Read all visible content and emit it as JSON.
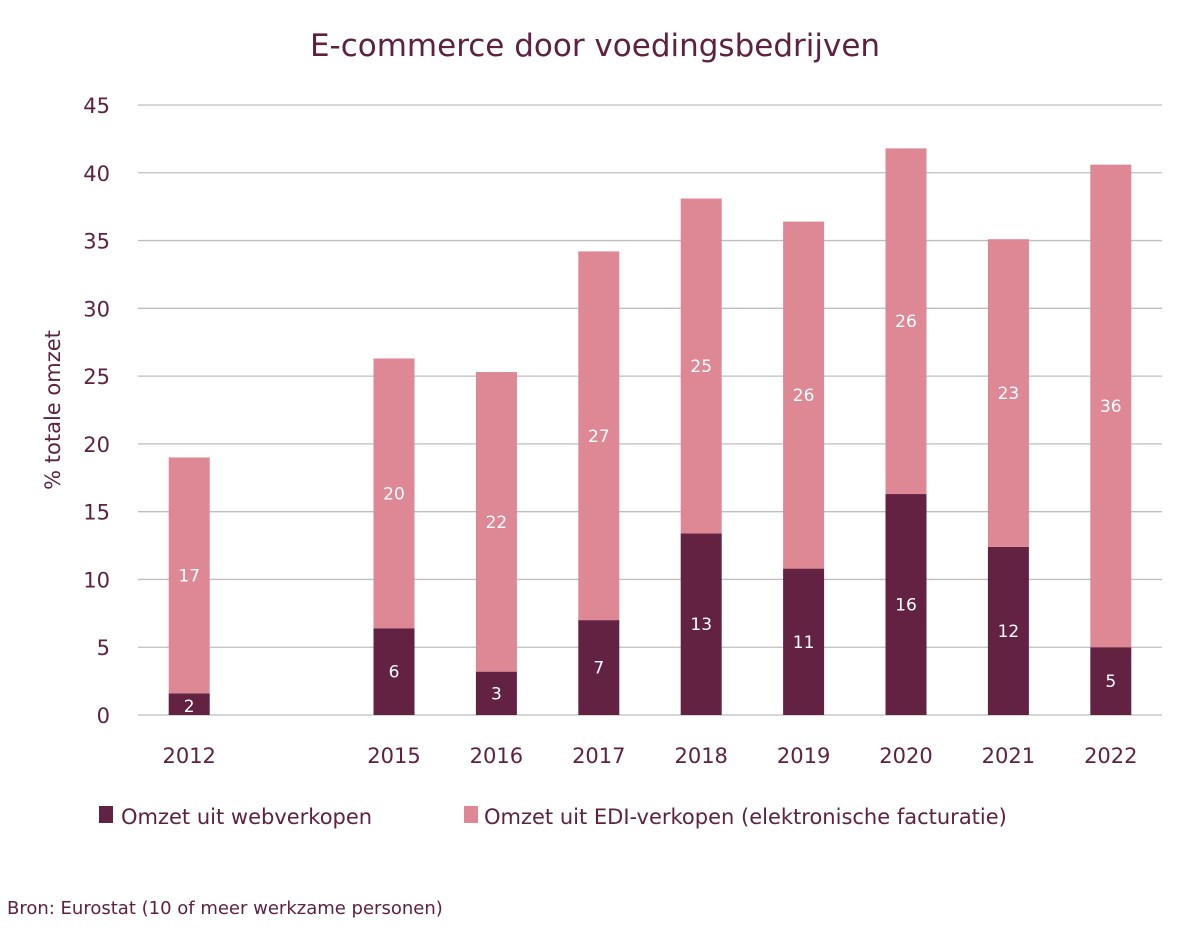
{
  "chart_data": {
    "type": "bar",
    "stacked": true,
    "title": "E-commerce door voedingsbedrijven",
    "xlabel": "",
    "ylabel": "% totale omzet",
    "ylim": [
      0,
      45
    ],
    "yticks": [
      0,
      5,
      10,
      15,
      20,
      25,
      30,
      35,
      40,
      45
    ],
    "grid": true,
    "categories": [
      "2012",
      "",
      "2015",
      "2016",
      "2017",
      "2018",
      "2019",
      "2020",
      "2021",
      "2022"
    ],
    "series": [
      {
        "name": "Omzet uit webverkopen",
        "color": "#632242",
        "values": [
          1.6,
          null,
          6.4,
          3.2,
          7.0,
          13.4,
          10.8,
          16.3,
          12.4,
          5.0
        ],
        "labels": [
          "2",
          "",
          "6",
          "3",
          "7",
          "13",
          "11",
          "16",
          "12",
          "5"
        ]
      },
      {
        "name": "Omzet uit EDI-verkopen (elektronische facturatie)",
        "color": "#de8896",
        "values": [
          17.4,
          null,
          19.9,
          22.1,
          27.2,
          24.7,
          25.6,
          25.5,
          22.7,
          35.6
        ],
        "labels": [
          "17",
          "",
          "20",
          "22",
          "27",
          "25",
          "26",
          "26",
          "23",
          "36"
        ]
      }
    ],
    "legend_position": "bottom",
    "source_note": "Bron: Eurostat (10 of meer werkzame personen)"
  }
}
